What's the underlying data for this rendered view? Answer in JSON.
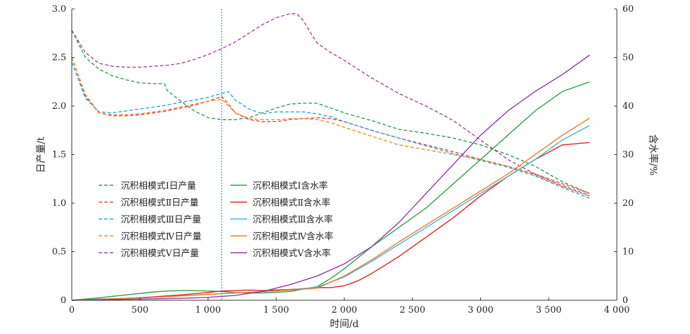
{
  "chart_data": {
    "type": "line",
    "xlabel": "时间/d",
    "ylabel_left": "日产量/t",
    "ylabel_right": "含水率/%",
    "xlim": [
      0,
      4000
    ],
    "ylim_left": [
      0,
      3.0
    ],
    "ylim_right": [
      0,
      60
    ],
    "x_ticks": [
      0,
      500,
      1000,
      1500,
      2000,
      2500,
      3000,
      3500,
      4000
    ],
    "x_tick_labels": [
      "0",
      "500",
      "1 000",
      "1 500",
      "2 000",
      "2 500",
      "3 000",
      "3 500",
      "4 000"
    ],
    "y_left_ticks": [
      0,
      0.5,
      1.0,
      1.5,
      2.0,
      2.5,
      3.0
    ],
    "y_left_tick_labels": [
      "0",
      "0.5",
      "1.0",
      "1.5",
      "2.0",
      "2.5",
      "3.0"
    ],
    "y_right_ticks": [
      0,
      10,
      20,
      30,
      40,
      50,
      60
    ],
    "y_right_tick_labels": [
      "0",
      "10",
      "20",
      "30",
      "40",
      "50",
      "60"
    ],
    "vertical_line_x": 1100,
    "grid": false,
    "legend_position": "left-center",
    "series": [
      {
        "name": "沉积相模式Ⅰ日产量",
        "axis": "left",
        "style": "dashed",
        "color": "#2e9e4f",
        "x": [
          0,
          100,
          200,
          300,
          400,
          500,
          600,
          680,
          700,
          800,
          900,
          1000,
          1100,
          1200,
          1300,
          1400,
          1500,
          1600,
          1700,
          1800,
          1900,
          2000,
          2200,
          2400,
          2600,
          2800,
          3000,
          3200,
          3400,
          3600,
          3800
        ],
        "y": [
          2.78,
          2.5,
          2.38,
          2.31,
          2.27,
          2.24,
          2.23,
          2.23,
          2.16,
          2.05,
          1.95,
          1.88,
          1.86,
          1.86,
          1.88,
          1.93,
          1.98,
          2.02,
          2.03,
          2.03,
          1.98,
          1.93,
          1.85,
          1.76,
          1.72,
          1.67,
          1.6,
          1.5,
          1.38,
          1.22,
          1.1
        ]
      },
      {
        "name": "沉积相模式Ⅱ日产量",
        "axis": "left",
        "style": "dashed",
        "color": "#e8473a",
        "x": [
          0,
          100,
          200,
          300,
          400,
          500,
          600,
          700,
          800,
          900,
          1000,
          1100,
          1150,
          1200,
          1300,
          1400,
          1500,
          1600,
          1700,
          1800,
          1900,
          2000,
          2200,
          2400,
          2600,
          2800,
          3000,
          3200,
          3400,
          3600,
          3800
        ],
        "y": [
          2.5,
          2.1,
          1.93,
          1.9,
          1.9,
          1.91,
          1.93,
          1.95,
          1.98,
          2.01,
          2.05,
          2.1,
          2.02,
          1.93,
          1.86,
          1.84,
          1.84,
          1.86,
          1.87,
          1.88,
          1.87,
          1.84,
          1.75,
          1.67,
          1.6,
          1.53,
          1.45,
          1.38,
          1.3,
          1.2,
          1.1
        ]
      },
      {
        "name": "沉积相模式Ⅲ日产量",
        "axis": "left",
        "style": "dashed",
        "color": "#2aa7d8",
        "x": [
          0,
          100,
          200,
          300,
          400,
          500,
          600,
          700,
          800,
          900,
          1000,
          1100,
          1150,
          1200,
          1300,
          1400,
          1500,
          1600,
          1700,
          1800,
          1900,
          2000,
          2200,
          2400,
          2600,
          2800,
          3000,
          3200,
          3400,
          3600,
          3800
        ],
        "y": [
          2.45,
          2.08,
          1.94,
          1.93,
          1.95,
          1.97,
          1.99,
          2.01,
          2.04,
          2.06,
          2.09,
          2.13,
          2.15,
          2.06,
          1.97,
          1.92,
          1.94,
          1.94,
          1.94,
          1.92,
          1.89,
          1.84,
          1.75,
          1.67,
          1.59,
          1.51,
          1.44,
          1.37,
          1.28,
          1.16,
          1.05
        ]
      },
      {
        "name": "沉积相模式Ⅳ日产量",
        "axis": "left",
        "style": "dashed",
        "color": "#f08a2c",
        "x": [
          0,
          100,
          200,
          300,
          400,
          500,
          600,
          700,
          800,
          900,
          1000,
          1100,
          1150,
          1200,
          1300,
          1400,
          1500,
          1600,
          1700,
          1800,
          1900,
          2000,
          2200,
          2400,
          2600,
          2800,
          3000,
          3200,
          3400,
          3600,
          3800
        ],
        "y": [
          2.5,
          2.12,
          1.93,
          1.91,
          1.91,
          1.92,
          1.94,
          1.96,
          1.99,
          2.02,
          2.05,
          2.07,
          2.0,
          1.93,
          1.87,
          1.86,
          1.86,
          1.87,
          1.87,
          1.86,
          1.83,
          1.78,
          1.69,
          1.6,
          1.55,
          1.5,
          1.45,
          1.38,
          1.29,
          1.17,
          1.07
        ]
      },
      {
        "name": "沉积相模式Ⅴ日产量",
        "axis": "left",
        "style": "dashed",
        "color": "#a0479c",
        "x": [
          0,
          100,
          200,
          300,
          400,
          500,
          600,
          700,
          800,
          900,
          1000,
          1100,
          1200,
          1300,
          1400,
          1500,
          1600,
          1650,
          1700,
          1750,
          1800,
          1900,
          2000,
          2200,
          2400,
          2600,
          2800,
          3000,
          3200,
          3400,
          3600,
          3800
        ],
        "y": [
          2.78,
          2.55,
          2.44,
          2.41,
          2.4,
          2.4,
          2.41,
          2.42,
          2.44,
          2.48,
          2.53,
          2.59,
          2.66,
          2.75,
          2.84,
          2.91,
          2.95,
          2.95,
          2.88,
          2.76,
          2.65,
          2.55,
          2.47,
          2.29,
          2.13,
          2.0,
          1.85,
          1.65,
          1.45,
          1.3,
          1.18,
          1.08
        ]
      },
      {
        "name": "沉积相模式Ⅰ含水率",
        "axis": "right",
        "style": "solid",
        "color": "#2e9e4f",
        "x": [
          0,
          200,
          400,
          600,
          700,
          800,
          900,
          1000,
          1100,
          1200,
          1300,
          1400,
          1600,
          1800,
          1900,
          2000,
          2200,
          2400,
          2600,
          2800,
          3000,
          3200,
          3400,
          3600,
          3800
        ],
        "y": [
          0,
          0.5,
          1.1,
          1.7,
          1.9,
          2.0,
          2.0,
          1.9,
          1.8,
          1.6,
          1.5,
          1.5,
          1.8,
          2.8,
          4.5,
          6.5,
          11,
          15,
          19,
          24,
          29,
          34,
          39,
          43,
          45
        ]
      },
      {
        "name": "沉积相模式Ⅱ含水率",
        "axis": "right",
        "style": "solid",
        "color": "#e02020",
        "x": [
          0,
          200,
          400,
          600,
          800,
          1000,
          1100,
          1200,
          1300,
          1400,
          1600,
          1800,
          1900,
          2000,
          2100,
          2200,
          2400,
          2600,
          2800,
          3000,
          3200,
          3400,
          3600,
          3800
        ],
        "y": [
          0,
          0.2,
          0.4,
          0.7,
          1.1,
          1.6,
          1.9,
          2.0,
          2.1,
          2.0,
          2.2,
          2.6,
          2.6,
          3.0,
          4.0,
          5.5,
          9,
          13,
          17,
          21.5,
          25.5,
          29,
          32,
          32.5
        ]
      },
      {
        "name": "沉积相模式Ⅲ含水率",
        "axis": "right",
        "style": "solid",
        "color": "#3cb6e6",
        "x": [
          0,
          200,
          400,
          600,
          800,
          1000,
          1200,
          1400,
          1600,
          1800,
          2000,
          2200,
          2400,
          2600,
          2800,
          3000,
          3200,
          3400,
          3600,
          3800
        ],
        "y": [
          0,
          0.2,
          0.4,
          0.6,
          0.9,
          1.2,
          1.5,
          1.8,
          2.1,
          2.7,
          4.8,
          8,
          11.5,
          15,
          18.5,
          22,
          25.5,
          29,
          33,
          36
        ]
      },
      {
        "name": "沉积相模式Ⅳ含水率",
        "axis": "right",
        "style": "solid",
        "color": "#f07a20",
        "x": [
          0,
          200,
          400,
          600,
          800,
          1000,
          1200,
          1400,
          1600,
          1800,
          2000,
          2200,
          2400,
          2600,
          2800,
          3000,
          3200,
          3400,
          3600,
          3800
        ],
        "y": [
          0,
          0.2,
          0.4,
          0.6,
          0.9,
          1.2,
          1.5,
          1.8,
          2.1,
          2.5,
          5,
          8.3,
          12,
          15.5,
          19,
          22.5,
          26,
          30,
          34,
          37.5
        ]
      },
      {
        "name": "沉积相模式Ⅴ含水率",
        "axis": "right",
        "style": "solid",
        "color": "#8e3aa0",
        "x": [
          0,
          200,
          400,
          600,
          800,
          1000,
          1200,
          1400,
          1600,
          1800,
          2000,
          2200,
          2400,
          2600,
          2800,
          3000,
          3200,
          3400,
          3600,
          3800
        ],
        "y": [
          0,
          0.1,
          0.2,
          0.3,
          0.4,
          0.6,
          1.0,
          1.8,
          3.2,
          5.0,
          7.5,
          11,
          16,
          22,
          28,
          34,
          39,
          43,
          46.5,
          50.5
        ]
      }
    ],
    "legend": {
      "daily_production": [
        "沉积相模式Ⅰ日产量",
        "沉积相模式Ⅱ日产量",
        "沉积相模式Ⅲ日产量",
        "沉积相模式Ⅳ日产量",
        "沉积相模式Ⅴ日产量"
      ],
      "water_cut": [
        "沉积相模式Ⅰ含水率",
        "沉积相模式Ⅱ含水率",
        "沉积相模式Ⅲ含水率",
        "沉积相模式Ⅳ含水率",
        "沉积相模式Ⅴ含水率"
      ]
    }
  }
}
